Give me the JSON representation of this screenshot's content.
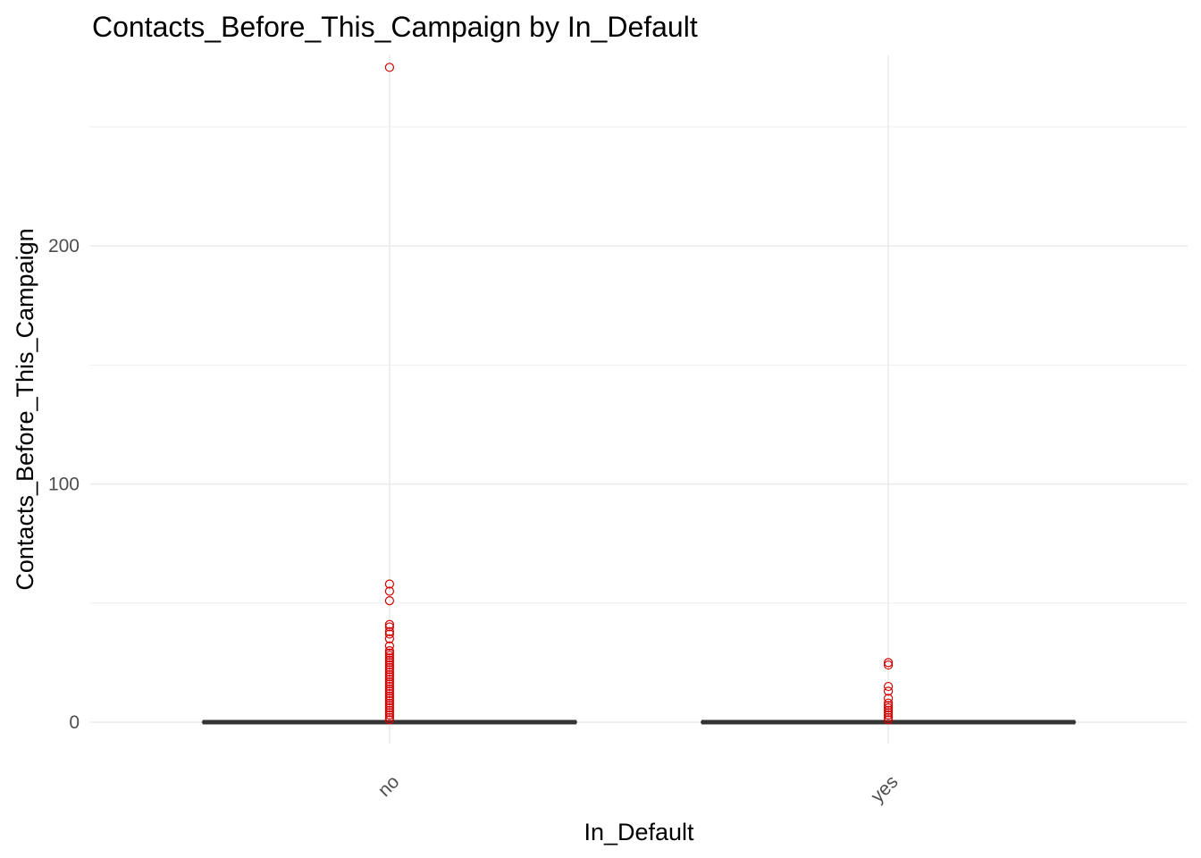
{
  "chart_data": {
    "type": "box",
    "title": "Contacts_Before_This_Campaign by In_Default",
    "xlabel": "In_Default",
    "ylabel": "Contacts_Before_This_Campaign",
    "categories": [
      "no",
      "yes"
    ],
    "ylim": [
      -9,
      280
    ],
    "yticks": [
      0,
      100,
      200
    ],
    "ytick_labels": [
      "0",
      "100",
      "200"
    ],
    "grid": true,
    "colors": {
      "outlier": "#d40000",
      "box": "#333333",
      "grid": "#ebebeb"
    },
    "boxes": [
      {
        "category": "no",
        "min": 0,
        "q1": 0,
        "median": 0,
        "q3": 0,
        "max": 0,
        "outliers": [
          1,
          2,
          3,
          4,
          5,
          6,
          7,
          8,
          9,
          10,
          11,
          12,
          13,
          14,
          15,
          16,
          17,
          18,
          19,
          20,
          21,
          22,
          23,
          24,
          25,
          26,
          27,
          28,
          29,
          30,
          32,
          35,
          37,
          38,
          40,
          41,
          51,
          55,
          58,
          275
        ]
      },
      {
        "category": "yes",
        "min": 0,
        "q1": 0,
        "median": 0,
        "q3": 0,
        "max": 0,
        "outliers": [
          1,
          2,
          3,
          4,
          5,
          6,
          7,
          8,
          10,
          13,
          15,
          24,
          25
        ]
      }
    ]
  }
}
